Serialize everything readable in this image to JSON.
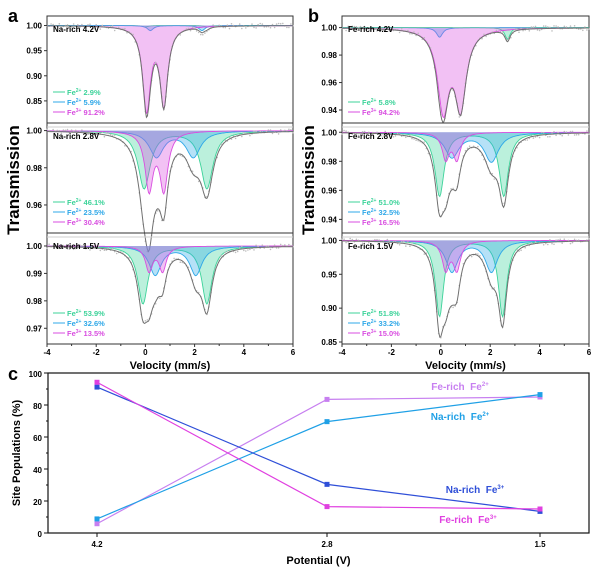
{
  "figure": {
    "panel_letters": [
      "a",
      "b",
      "c"
    ]
  },
  "colors": {
    "fe2_site1": "#3dd39a",
    "fe2_site2": "#2fa8e8",
    "fe3": "#d94ee0",
    "envelope": "#707070",
    "data_points": "#bdbdbd",
    "na_fe2": "#1fa0e6",
    "na_fe3": "#2f4fd8",
    "fe_fe2": "#c77ff0",
    "fe_fe3": "#e040e0"
  },
  "chart_data": [
    {
      "id": "a",
      "type": "line",
      "title": "Na-rich Mössbauer spectra",
      "xlabel": "Velocity (mm/s)",
      "ylabel": "Transmission",
      "xlim": [
        -4,
        6
      ],
      "xticks": [
        "-4",
        "-2",
        "0",
        "2",
        "4",
        "6"
      ],
      "subplots": [
        {
          "label": "Na-rich 4.2V",
          "ylim": [
            0.81,
            1.015
          ],
          "yticks": [
            "0.85",
            "0.90",
            "0.95",
            "1.00"
          ],
          "ytick_values": [
            0.85,
            0.9,
            0.95,
            1.0
          ],
          "legend": [
            {
              "ion": "Fe",
              "charge": "2+",
              "value": "2.9%",
              "color_key": "fe2_site1"
            },
            {
              "ion": "Fe",
              "charge": "2+",
              "value": "5.9%",
              "color_key": "fe2_site2"
            },
            {
              "ion": "Fe",
              "charge": "3+",
              "value": "91.2%",
              "color_key": "fe3"
            }
          ],
          "components": [
            {
              "name": "Fe2+ site 1",
              "color_key": "fe2_site1",
              "peaks": [
                [
                  0.0,
                  0.003,
                  0.25
                ],
                [
                  2.5,
                  0.003,
                  0.25
                ]
              ]
            },
            {
              "name": "Fe2+ site 2",
              "color_key": "fe2_site2",
              "peaks": [
                [
                  0.2,
                  0.01,
                  0.3
                ],
                [
                  2.3,
                  0.01,
                  0.3
                ]
              ]
            },
            {
              "name": "Fe3+",
              "color_key": "fe3",
              "peaks": [
                [
                  0.05,
                  0.165,
                  0.38
                ],
                [
                  0.75,
                  0.155,
                  0.38
                ]
              ]
            }
          ]
        },
        {
          "label": "Na-rich 2.8V",
          "ylim": [
            0.946,
            1.003
          ],
          "yticks": [
            "0.96",
            "0.98",
            "1.00"
          ],
          "ytick_values": [
            0.96,
            0.98,
            1.0
          ],
          "legend": [
            {
              "ion": "Fe",
              "charge": "2+",
              "value": "46.1%",
              "color_key": "fe2_site1"
            },
            {
              "ion": "Fe",
              "charge": "2+",
              "value": "23.5%",
              "color_key": "fe2_site2"
            },
            {
              "ion": "Fe",
              "charge": "3+",
              "value": "30.4%",
              "color_key": "fe3"
            }
          ],
          "components": [
            {
              "name": "Fe2+ site 1",
              "color_key": "fe2_site1",
              "peaks": [
                [
                  -0.05,
                  0.031,
                  0.6
                ],
                [
                  2.5,
                  0.031,
                  0.6
                ]
              ]
            },
            {
              "name": "Fe2+ site 2",
              "color_key": "fe2_site2",
              "peaks": [
                [
                  0.45,
                  0.014,
                  0.7
                ],
                [
                  1.95,
                  0.014,
                  0.7
                ]
              ]
            },
            {
              "name": "Fe3+",
              "color_key": "fe3",
              "peaks": [
                [
                  0.15,
                  0.031,
                  0.4
                ],
                [
                  0.75,
                  0.031,
                  0.4
                ]
              ]
            }
          ]
        },
        {
          "label": "Na-rich 1.5V",
          "ylim": [
            0.965,
            1.004
          ],
          "yticks": [
            "0.97",
            "0.98",
            "0.99",
            "1.00"
          ],
          "ytick_values": [
            0.97,
            0.98,
            0.99,
            1.0
          ],
          "legend": [
            {
              "ion": "Fe",
              "charge": "2+",
              "value": "53.9%",
              "color_key": "fe2_site1"
            },
            {
              "ion": "Fe",
              "charge": "2+",
              "value": "32.6%",
              "color_key": "fe2_site2"
            },
            {
              "ion": "Fe",
              "charge": "3+",
              "value": "13.5%",
              "color_key": "fe3"
            }
          ],
          "components": [
            {
              "name": "Fe2+ site 1",
              "color_key": "fe2_site1",
              "peaks": [
                [
                  -0.1,
                  0.021,
                  0.5
                ],
                [
                  2.5,
                  0.021,
                  0.5
                ]
              ]
            },
            {
              "name": "Fe2+ site 2",
              "color_key": "fe2_site2",
              "peaks": [
                [
                  0.4,
                  0.0105,
                  0.6
                ],
                [
                  2.05,
                  0.0105,
                  0.6
                ]
              ]
            },
            {
              "name": "Fe3+",
              "color_key": "fe3",
              "peaks": [
                [
                  0.15,
                  0.009,
                  0.35
                ],
                [
                  0.7,
                  0.009,
                  0.35
                ]
              ]
            }
          ]
        }
      ]
    },
    {
      "id": "b",
      "type": "line",
      "title": "Fe-rich Mössbauer spectra",
      "xlabel": "Velocity (mm/s)",
      "ylabel": "Transmission",
      "xlim": [
        -4,
        6
      ],
      "xticks": [
        "-4",
        "-2",
        "0",
        "2",
        "4",
        "6"
      ],
      "subplots": [
        {
          "label": "Fe-rich 4.2V",
          "ylim": [
            0.932,
            1.007
          ],
          "yticks": [
            "0.94",
            "0.96",
            "0.98",
            "1.00"
          ],
          "ytick_values": [
            0.94,
            0.96,
            0.98,
            1.0
          ],
          "legend": [
            {
              "ion": "Fe",
              "charge": "2+",
              "value": "5.8%",
              "color_key": "fe2_site1"
            },
            {
              "ion": "Fe",
              "charge": "3+",
              "value": "94.2%",
              "color_key": "fe3"
            }
          ],
          "components": [
            {
              "name": "Fe2+ site 2",
              "color_key": "fe2_site2",
              "peaks": [
                [
                  -0.05,
                  0.007,
                  0.3
                ]
              ]
            },
            {
              "name": "Fe2+ site 1",
              "color_key": "fe2_site1",
              "peaks": [
                [
                  2.7,
                  0.0085,
                  0.25
                ]
              ]
            },
            {
              "name": "Fe3+",
              "color_key": "fe3",
              "peaks": [
                [
                  0.1,
                  0.058,
                  0.55
                ],
                [
                  0.8,
                  0.056,
                  0.55
                ]
              ]
            }
          ]
        },
        {
          "label": "Fe-rich 2.8V",
          "ylim": [
            0.932,
            1.005
          ],
          "yticks": [
            "0.94",
            "0.96",
            "0.98",
            "1.00"
          ],
          "ytick_values": [
            0.94,
            0.96,
            0.98,
            1.0
          ],
          "legend": [
            {
              "ion": "Fe",
              "charge": "2+",
              "value": "51.0%",
              "color_key": "fe2_site1"
            },
            {
              "ion": "Fe",
              "charge": "2+",
              "value": "32.5%",
              "color_key": "fe2_site2"
            },
            {
              "ion": "Fe",
              "charge": "3+",
              "value": "16.5%",
              "color_key": "fe3"
            }
          ],
          "components": [
            {
              "name": "Fe2+ site 1",
              "color_key": "fe2_site1",
              "peaks": [
                [
                  -0.05,
                  0.044,
                  0.45
                ],
                [
                  2.55,
                  0.044,
                  0.45
                ]
              ]
            },
            {
              "name": "Fe2+ site 2",
              "color_key": "fe2_site2",
              "peaks": [
                [
                  0.45,
                  0.017,
                  0.7
                ],
                [
                  2.05,
                  0.02,
                  0.7
                ]
              ]
            },
            {
              "name": "Fe3+",
              "color_key": "fe3",
              "peaks": [
                [
                  0.2,
                  0.018,
                  0.35
                ],
                [
                  0.65,
                  0.018,
                  0.35
                ]
              ]
            }
          ]
        },
        {
          "label": "Fe-rich 1.5V",
          "ylim": [
            0.85,
            1.008
          ],
          "yticks": [
            "0.85",
            "0.90",
            "0.95",
            "1.00"
          ],
          "ytick_values": [
            0.85,
            0.9,
            0.95,
            1.0
          ],
          "legend": [
            {
              "ion": "Fe",
              "charge": "2+",
              "value": "51.8%",
              "color_key": "fe2_site1"
            },
            {
              "ion": "Fe",
              "charge": "2+",
              "value": "33.2%",
              "color_key": "fe2_site2"
            },
            {
              "ion": "Fe",
              "charge": "3+",
              "value": "15.0%",
              "color_key": "fe3"
            }
          ],
          "components": [
            {
              "name": "Fe2+ site 1",
              "color_key": "fe2_site1",
              "peaks": [
                [
                  -0.05,
                  0.112,
                  0.4
                ],
                [
                  2.5,
                  0.112,
                  0.4
                ]
              ]
            },
            {
              "name": "Fe2+ site 2",
              "color_key": "fe2_site2",
              "peaks": [
                [
                  0.45,
                  0.046,
                  0.6
                ],
                [
                  2.05,
                  0.046,
                  0.6
                ]
              ]
            },
            {
              "name": "Fe3+",
              "color_key": "fe3",
              "peaks": [
                [
                  0.2,
                  0.042,
                  0.35
                ],
                [
                  0.65,
                  0.042,
                  0.35
                ]
              ]
            }
          ]
        }
      ]
    },
    {
      "id": "c",
      "type": "line",
      "title": "",
      "xlabel": "Potential (V)",
      "ylabel": "Site Populations (%)",
      "categories": [
        "4.2",
        "2.8",
        "1.5"
      ],
      "ylim": [
        0,
        100
      ],
      "yticks": [
        "0",
        "20",
        "40",
        "60",
        "80",
        "100"
      ],
      "ytick_values": [
        0,
        20,
        40,
        60,
        80,
        100
      ],
      "series": [
        {
          "name": "Fe-rich Fe2+",
          "label_prefix": "Fe-rich  Fe",
          "charge": "2+",
          "color_key": "fe_fe2",
          "values": [
            5.8,
            83.5,
            85.0
          ]
        },
        {
          "name": "Na-rich Fe2+",
          "label_prefix": "Na-rich  Fe",
          "charge": "2+",
          "color_key": "na_fe2",
          "values": [
            8.8,
            69.6,
            86.5
          ]
        },
        {
          "name": "Na-rich Fe3+",
          "label_prefix": "Na-rich  Fe",
          "charge": "3+",
          "color_key": "na_fe3",
          "values": [
            91.2,
            30.4,
            13.5
          ]
        },
        {
          "name": "Fe-rich Fe3+",
          "label_prefix": "Fe-rich  Fe",
          "charge": "3+",
          "color_key": "fe_fe3",
          "values": [
            94.2,
            16.5,
            15.0
          ]
        }
      ]
    }
  ]
}
